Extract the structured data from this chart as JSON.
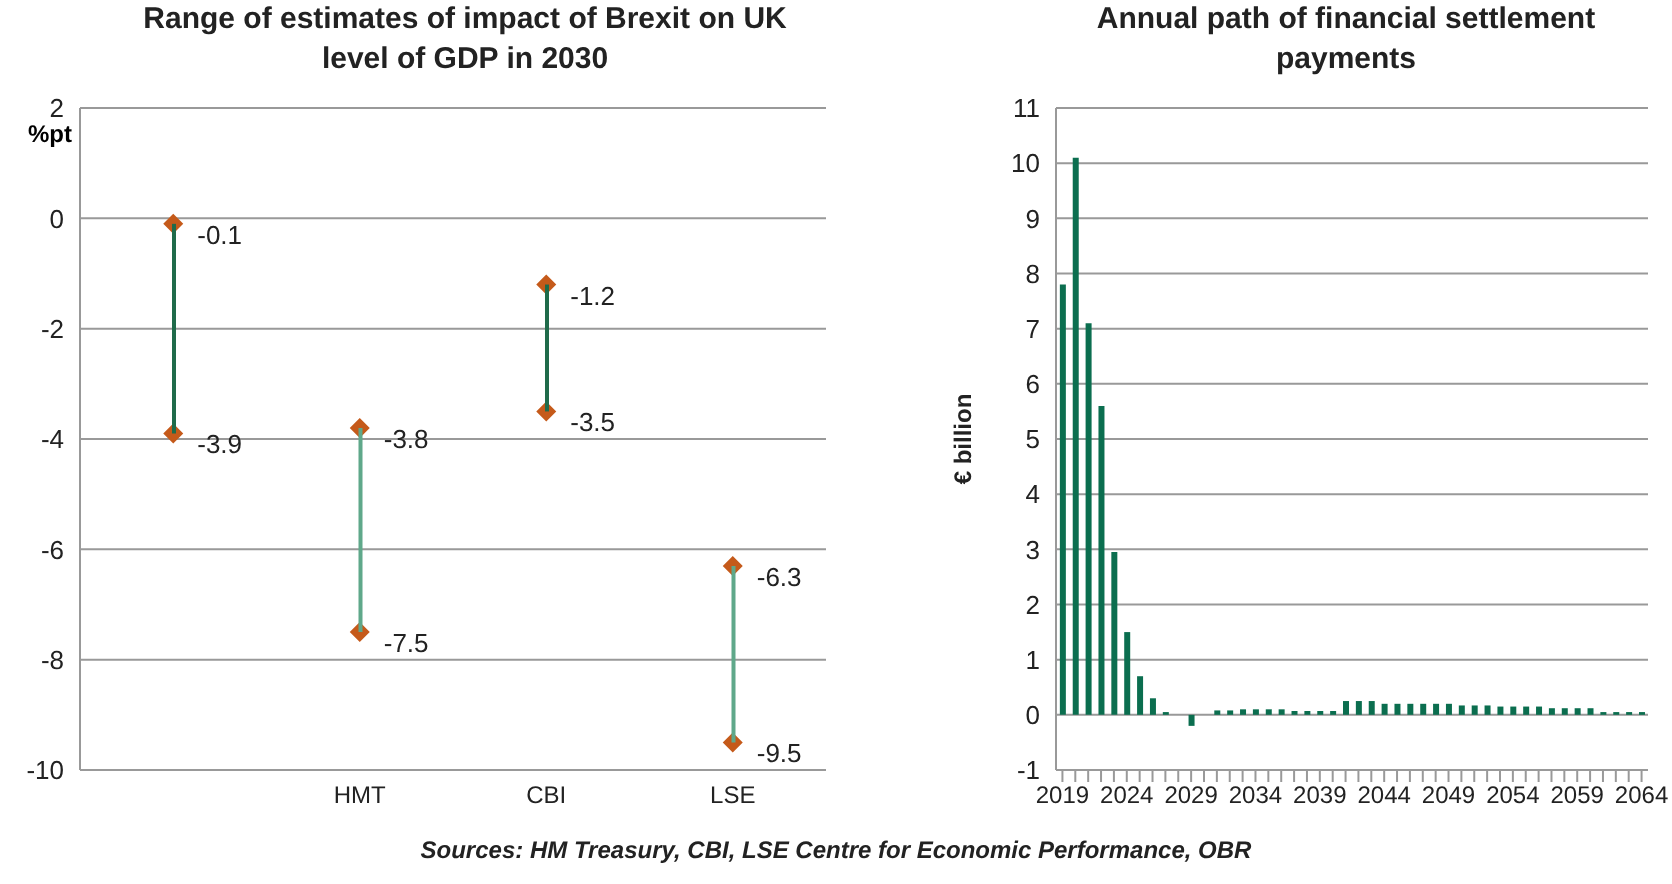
{
  "chart_data": [
    {
      "type": "scatter",
      "title": "Range of estimates of impact of Brexit on UK level of GDP in 2030",
      "ylabel": "%pt",
      "categories": [
        null,
        "HMT",
        "CBI",
        "LSE"
      ],
      "ylim": [
        -10,
        2
      ],
      "yticks": [
        -10,
        -8,
        -6,
        -4,
        -2,
        0,
        2
      ],
      "grid": "y",
      "legend": false,
      "marker": "diamond",
      "series": [
        {
          "type": "bar",
          "base": [
            -3.9,
            -7.5,
            -3.5,
            -9.5
          ],
          "values": [
            3.8,
            3.7,
            2.3,
            3.2
          ],
          "colors": [
            "#1f6b4a",
            "#5fa88a",
            "#1f6b4a",
            "#5fa88a"
          ]
        },
        {
          "type": "scatter",
          "color": "#c55a1a",
          "values": [
            -0.1,
            -3.8,
            -1.2,
            -6.3
          ],
          "value_labels": [
            "-0.1",
            "-3.8",
            "-1.2",
            "-6.3"
          ]
        },
        {
          "type": "scatter",
          "color": "#c55a1a",
          "values": [
            -3.9,
            -7.5,
            -3.5,
            -9.5
          ],
          "value_labels": [
            "-3.9",
            "-7.5",
            "-3.5",
            "-9.5"
          ]
        }
      ],
      "annotations": [
        "Sources: HM Treasury, CBI, LSE Centre for Economic Performance, OBR"
      ]
    },
    {
      "type": "bar",
      "title": "Annual path of financial settlement payments",
      "ylabel": "€ billion",
      "categories": [
        "2019",
        null,
        null,
        null,
        null,
        "2024",
        null,
        null,
        null,
        null,
        "2029",
        null,
        null,
        null,
        null,
        "2034",
        null,
        null,
        null,
        null,
        "2039",
        null,
        null,
        null,
        null,
        "2044",
        null,
        null,
        null,
        null,
        "2049",
        null,
        null,
        null,
        null,
        "2054",
        null,
        null,
        null,
        null,
        "2059",
        null,
        null,
        null,
        null,
        "2064"
      ],
      "values": [
        7.8,
        10.1,
        7.1,
        5.6,
        2.95,
        1.5,
        0.7,
        0.3,
        0.05,
        0,
        -0.2,
        0,
        0.08,
        0.08,
        0.1,
        0.1,
        0.1,
        0.1,
        0.07,
        0.07,
        0.07,
        0.07,
        0.25,
        0.25,
        0.25,
        0.2,
        0.2,
        0.2,
        0.2,
        0.2,
        0.2,
        0.17,
        0.17,
        0.17,
        0.15,
        0.15,
        0.15,
        0.15,
        0.12,
        0.12,
        0.12,
        0.12,
        0.05,
        0.05,
        0.05,
        0.05
      ],
      "color": "#0b6e4f",
      "ylim": [
        -1,
        11
      ],
      "yticks": [
        -1,
        0,
        1,
        2,
        3,
        4,
        5,
        6,
        7,
        8,
        9,
        10,
        11
      ],
      "grid": "y",
      "legend": false
    }
  ]
}
